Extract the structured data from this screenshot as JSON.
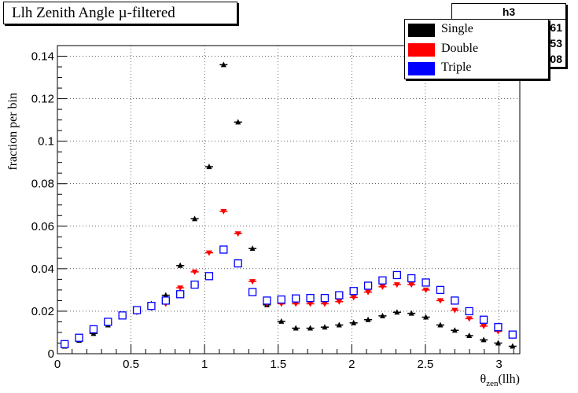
{
  "chart_data": {
    "type": "scatter",
    "title": "Llh Zenith Angle µ-filtered",
    "xlabel": "θ",
    "xlabel_sub": "zen",
    "xlabel_suffix": "(llh)",
    "ylabel": "fraction per bin",
    "xlim": [
      0,
      3.1416
    ],
    "ylim": [
      0,
      0.145
    ],
    "x_ticks": [
      "0",
      "0.5",
      "1",
      "1.5",
      "2",
      "2.5",
      "3"
    ],
    "y_ticks": [
      "0",
      "0.02",
      "0.04",
      "0.06",
      "0.08",
      "0.1",
      "0.12",
      "0.14"
    ],
    "grid": true,
    "legend_position": "top-right",
    "stats_box": {
      "name": "h3",
      "values": [
        "61",
        "53",
        "08"
      ]
    },
    "x": [
      0.0491,
      0.1473,
      0.2454,
      0.3436,
      0.4418,
      0.54,
      0.6381,
      0.7363,
      0.8345,
      0.9327,
      1.0308,
      1.129,
      1.2272,
      1.3254,
      1.4235,
      1.5217,
      1.6199,
      1.7181,
      1.8162,
      1.9144,
      2.0126,
      2.1108,
      2.2089,
      2.3071,
      2.4053,
      2.5035,
      2.6016,
      2.6998,
      2.798,
      2.8962,
      2.9943,
      3.0925
    ],
    "series": [
      {
        "name": "Single",
        "color": "#000000",
        "marker": "triangle-up",
        "values": [
          0.0035,
          0.0063,
          0.0095,
          0.0135,
          0.0175,
          0.0205,
          0.0235,
          0.0275,
          0.0415,
          0.0635,
          0.088,
          0.136,
          0.109,
          0.0495,
          0.023,
          0.0152,
          0.012,
          0.012,
          0.0125,
          0.0135,
          0.0145,
          0.016,
          0.0178,
          0.0195,
          0.019,
          0.0172,
          0.0135,
          0.011,
          0.0085,
          0.0065,
          0.005,
          0.0035
        ]
      },
      {
        "name": "Double",
        "color": "#ff0000",
        "marker": "triangle-down",
        "values": [
          0.0045,
          0.0075,
          0.011,
          0.0145,
          0.0175,
          0.0195,
          0.0215,
          0.0235,
          0.031,
          0.0385,
          0.0475,
          0.067,
          0.0565,
          0.034,
          0.0235,
          0.0235,
          0.0235,
          0.0235,
          0.0235,
          0.0245,
          0.0265,
          0.029,
          0.0315,
          0.0325,
          0.0325,
          0.03,
          0.025,
          0.0205,
          0.0165,
          0.013,
          0.0105,
          0.0085
        ]
      },
      {
        "name": "Triple",
        "color": "#0000ff",
        "marker": "open-square",
        "values": [
          0.0045,
          0.0075,
          0.0115,
          0.015,
          0.018,
          0.0205,
          0.0225,
          0.025,
          0.028,
          0.0325,
          0.0365,
          0.049,
          0.0425,
          0.029,
          0.025,
          0.0255,
          0.026,
          0.0262,
          0.0262,
          0.0275,
          0.0295,
          0.032,
          0.0345,
          0.037,
          0.0355,
          0.0335,
          0.03,
          0.025,
          0.02,
          0.016,
          0.0125,
          0.009
        ]
      }
    ]
  }
}
